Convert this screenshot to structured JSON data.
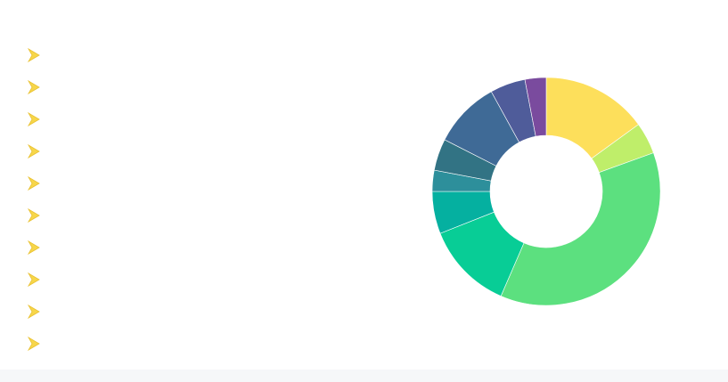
{
  "colors": {
    "bullet_arrow": "#f7d64a",
    "background_strip": "#f6f7f9"
  },
  "list": {
    "icon": "chevron-arrow-icon",
    "items": [
      {
        "label": ""
      },
      {
        "label": ""
      },
      {
        "label": ""
      },
      {
        "label": ""
      },
      {
        "label": ""
      },
      {
        "label": ""
      },
      {
        "label": ""
      },
      {
        "label": ""
      },
      {
        "label": ""
      },
      {
        "label": ""
      }
    ]
  },
  "chart_data": {
    "type": "pie",
    "variant": "donut",
    "title": "",
    "legend": "none",
    "slices": [
      {
        "value": 15.0,
        "color": "#fddf5b"
      },
      {
        "value": 4.5,
        "color": "#bfee6a"
      },
      {
        "value": 37.0,
        "color": "#5ce07f"
      },
      {
        "value": 12.5,
        "color": "#08cd96"
      },
      {
        "value": 6.0,
        "color": "#05b0a0"
      },
      {
        "value": 3.0,
        "color": "#2d8f9b"
      },
      {
        "value": 4.5,
        "color": "#327384"
      },
      {
        "value": 9.5,
        "color": "#3f6a96"
      },
      {
        "value": 5.0,
        "color": "#4f5c9a"
      },
      {
        "value": 3.0,
        "color": "#7a4b9e"
      }
    ]
  }
}
